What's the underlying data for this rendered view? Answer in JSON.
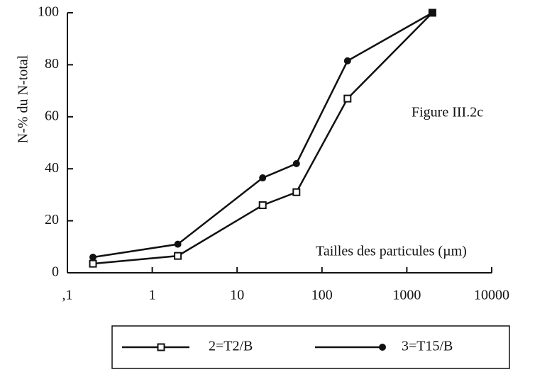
{
  "chart_data": {
    "type": "line",
    "ylabel": "N-% du N-total",
    "xlabel": "Tailles des particules (µm)",
    "annotation": "Figure III.2c",
    "xscale": "log",
    "x": [
      0.2,
      2,
      20,
      50,
      200,
      2000
    ],
    "series": [
      {
        "name": "2=T2/B",
        "color": "#111111",
        "marker": "square",
        "values": [
          3.5,
          6.5,
          26,
          31,
          67,
          100
        ]
      },
      {
        "name": "3=T15/B",
        "color": "#111111",
        "marker": "circle",
        "values": [
          6,
          11,
          36.5,
          42,
          81.5,
          100
        ]
      }
    ],
    "xlim": [
      0.1,
      10000
    ],
    "xticks": [
      {
        "value": 0.1,
        "label": ",1"
      },
      1,
      10,
      100,
      1000,
      10000
    ],
    "ylim": [
      0,
      100
    ],
    "yticks": [
      0,
      20,
      40,
      60,
      80,
      100
    ],
    "legend": "bottom"
  }
}
